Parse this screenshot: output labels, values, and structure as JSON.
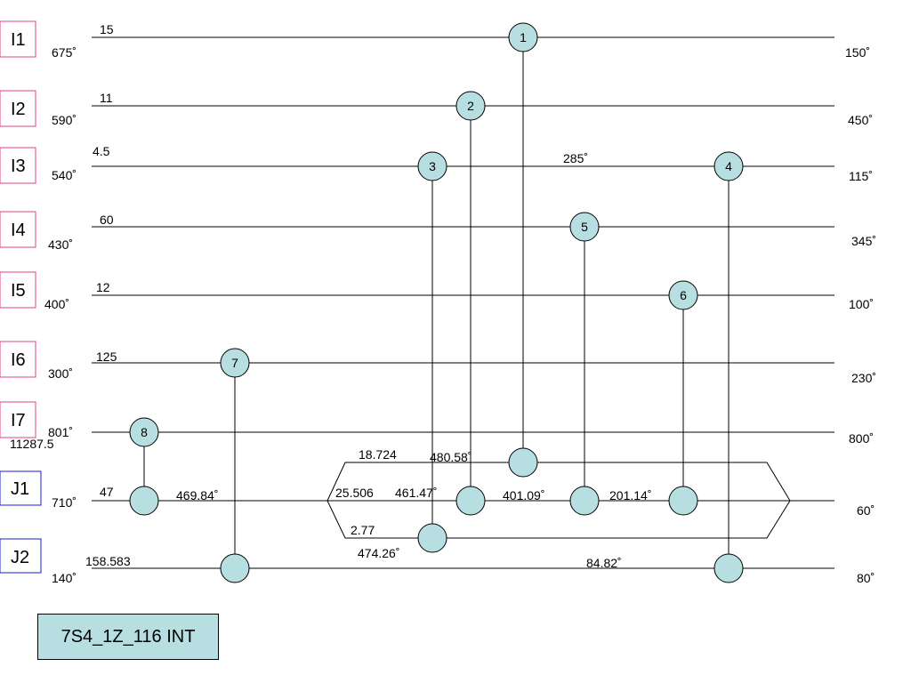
{
  "streams": [
    {
      "tag": "I1",
      "kind": "hot",
      "value": "15",
      "t_in": "675˚",
      "t_out": "150˚"
    },
    {
      "tag": "I2",
      "kind": "hot",
      "value": "11",
      "t_in": "590˚",
      "t_out": "450˚"
    },
    {
      "tag": "I3",
      "kind": "hot",
      "value": "4.5",
      "t_in": "540˚",
      "t_out": "115˚"
    },
    {
      "tag": "I4",
      "kind": "hot",
      "value": "60",
      "t_in": "430˚",
      "t_out": "345˚"
    },
    {
      "tag": "I5",
      "kind": "hot",
      "value": "12",
      "t_in": "400˚",
      "t_out": "100˚"
    },
    {
      "tag": "I6",
      "kind": "hot",
      "value": "125",
      "t_in": "300˚",
      "t_out": "230˚"
    },
    {
      "tag": "I7",
      "kind": "hot",
      "value": "11287.5",
      "t_in": "801˚",
      "t_out": "800˚"
    },
    {
      "tag": "J1",
      "kind": "cold",
      "value": "47",
      "t_in": "710˚",
      "t_out": "60˚"
    },
    {
      "tag": "J2",
      "kind": "cold",
      "value": "158.583",
      "t_in": "140˚",
      "t_out": "80˚"
    }
  ],
  "exchangers": [
    "1",
    "2",
    "3",
    "4",
    "5",
    "6",
    "7",
    "8"
  ],
  "branches": {
    "top": "18.724",
    "middle": "25.506",
    "bottom": "2.77"
  },
  "temperatures": {
    "i3_mid": "285˚",
    "j1_after_8": "469.84˚",
    "branch_top_after_1": "480.58˚",
    "branch_mid_after_2": "461.47˚",
    "branch_mid_after_5": "401.09˚",
    "branch_mid_after_6": "201.14˚",
    "branch_bottom_after_3": "474.26˚",
    "j2_after_7": "84.82˚"
  },
  "title": "7S4_1Z_116 INT",
  "colors": {
    "hot_tag": "#e0408a",
    "cold_tag": "#1c1ccc",
    "exchanger_fill": "#b7dfe2"
  }
}
